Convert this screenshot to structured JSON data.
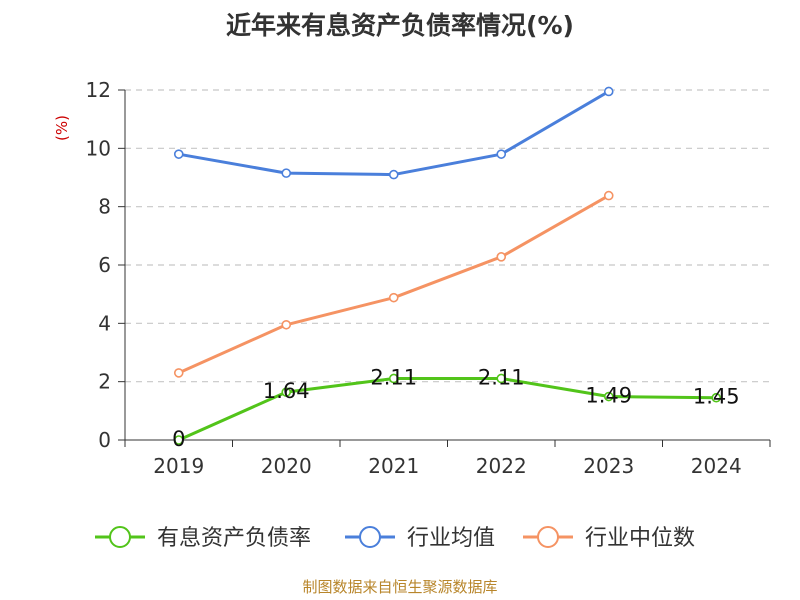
{
  "chart_data": {
    "type": "line",
    "title": "近年来有息资产负债率情况(%)",
    "ylabel": "(%)",
    "xlabel": "",
    "categories": [
      "2019",
      "2020",
      "2021",
      "2022",
      "2023",
      "2024"
    ],
    "ylim": [
      0,
      12
    ],
    "yticks": [
      "0",
      "2",
      "4",
      "6",
      "8",
      "10",
      "12"
    ],
    "grid": true,
    "legend_position": "bottom",
    "series": [
      {
        "name": "有息资产负债率",
        "color": "#52c41a",
        "values": [
          0,
          1.64,
          2.11,
          2.11,
          1.49,
          1.45
        ],
        "labels": [
          "0",
          "1.64",
          "2.11",
          "2.11",
          "1.49",
          "1.45"
        ]
      },
      {
        "name": "行业均值",
        "color": "#4a7fdb",
        "values": [
          9.8,
          9.15,
          9.1,
          9.8,
          11.95,
          null
        ]
      },
      {
        "name": "行业中位数",
        "color": "#f59363",
        "values": [
          2.3,
          3.95,
          4.88,
          6.28,
          8.38,
          null
        ]
      }
    ]
  },
  "source": "制图数据来自恒生聚源数据库"
}
